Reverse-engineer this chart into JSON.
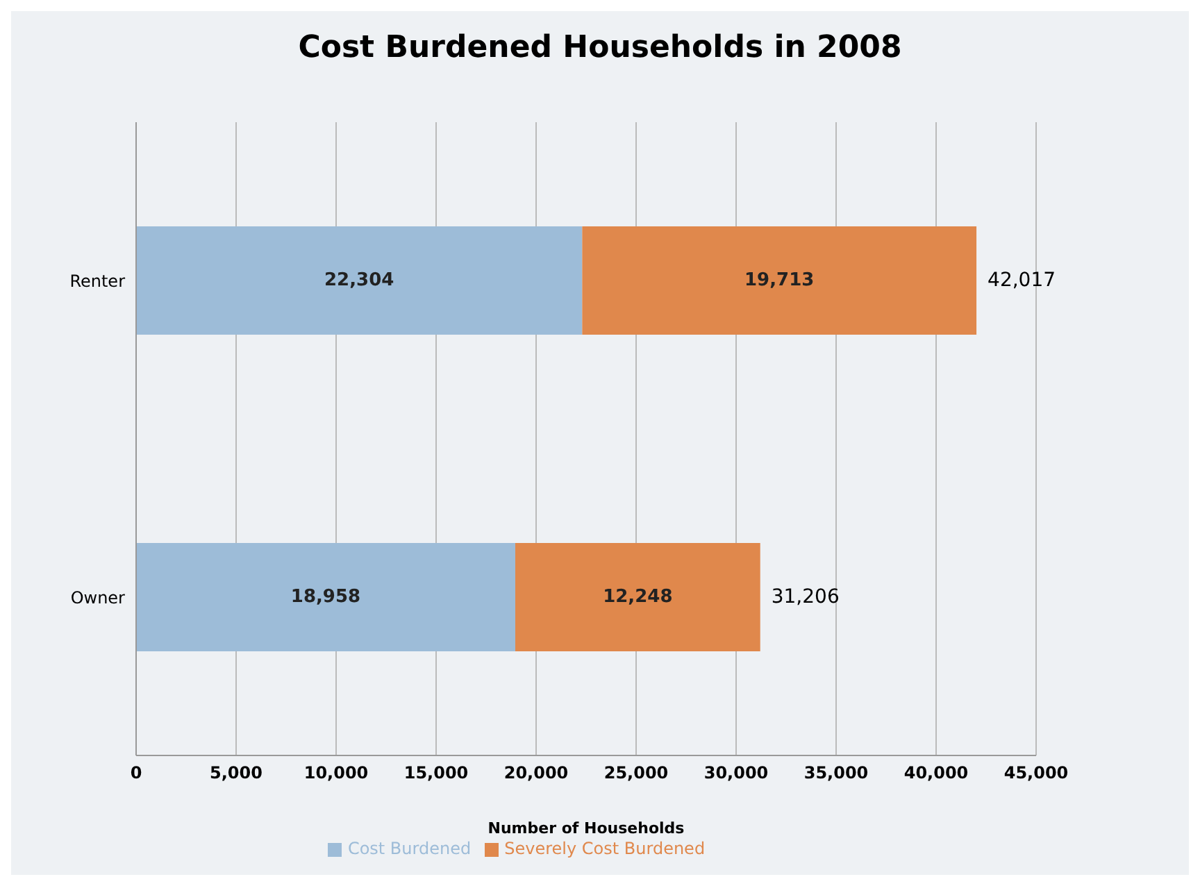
{
  "chart_data": {
    "type": "bar",
    "title": "Cost Burdened Households in 2008",
    "xlabel": "Number of Households",
    "orientation": "horizontal",
    "stacked": true,
    "categories": [
      "Renter",
      "Owner"
    ],
    "series": [
      {
        "name": "Cost Burdened",
        "color": "#9dbcd8",
        "values": [
          22304,
          18958
        ],
        "value_labels": [
          "22,304",
          "18,958"
        ]
      },
      {
        "name": "Severely Cost Burdened",
        "color": "#e0884c",
        "values": [
          19713,
          12248
        ],
        "value_labels": [
          "19,713",
          "12,248"
        ]
      }
    ],
    "totals": [
      "42,017",
      "31,206"
    ],
    "xlim": [
      0,
      45000
    ],
    "xticks": [
      0,
      {
        "value": 5000,
        "label": "5,000"
      },
      {
        "value": 10000,
        "label": "10,000"
      },
      {
        "value": 15000,
        "label": "15,000"
      },
      {
        "value": 20000,
        "label": "20,000"
      },
      {
        "value": 25000,
        "label": "25,000"
      },
      {
        "value": 30000,
        "label": "30,000"
      },
      {
        "value": 35000,
        "label": "35,000"
      },
      {
        "value": 40000,
        "label": "40,000"
      },
      {
        "value": 45000,
        "label": "45,000"
      }
    ],
    "grid": "x",
    "legend": "bottom"
  }
}
